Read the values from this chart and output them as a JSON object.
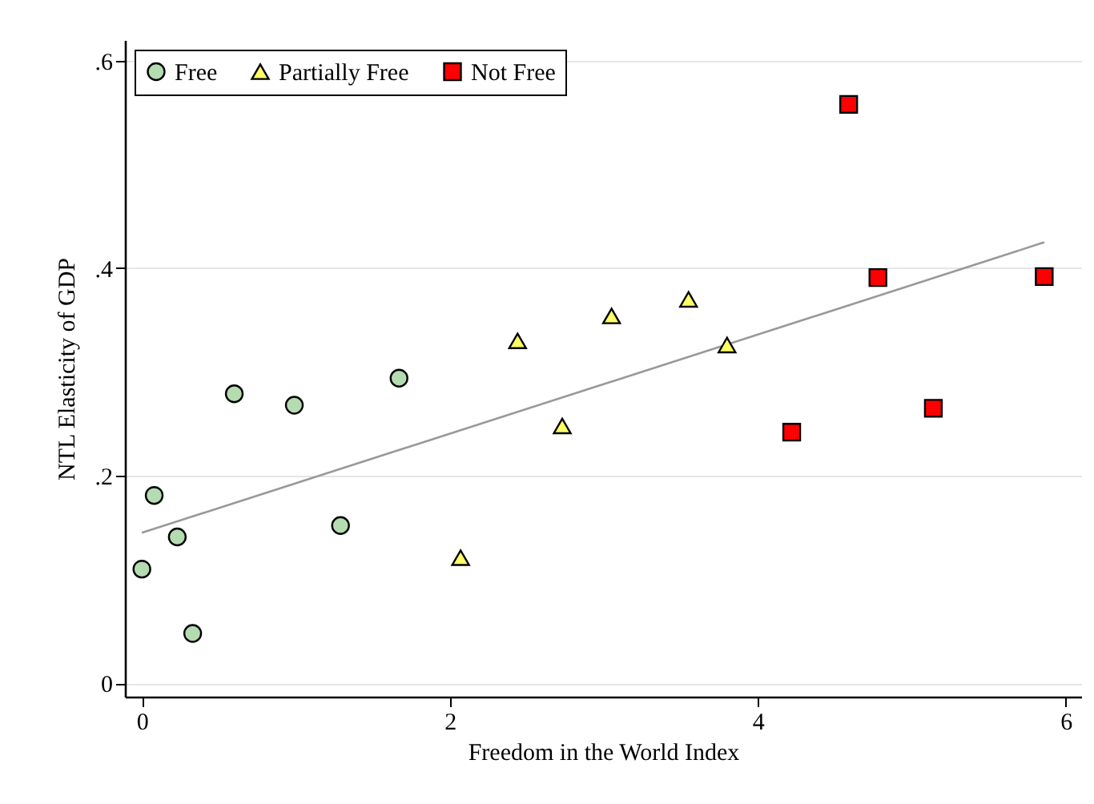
{
  "chart_data": {
    "type": "scatter",
    "xlabel": "Freedom in the World Index",
    "ylabel": "NTL Elasticity of GDP",
    "xlim": [
      -0.11,
      6.1
    ],
    "ylim": [
      -0.013,
      0.62
    ],
    "xticks": [
      0,
      2,
      4,
      6
    ],
    "yticks": [
      {
        "value": 0,
        "label": "0"
      },
      {
        "value": 0.2,
        "label": ".2"
      },
      {
        "value": 0.4,
        "label": ".4"
      },
      {
        "value": 0.6,
        "label": ".6"
      }
    ],
    "grid": "y",
    "legend": "top left",
    "series": [
      {
        "name": "Free",
        "color": "#b5dbb0",
        "marker": "circle",
        "x": [
          0,
          0.08,
          0.23,
          0.33,
          0.6,
          0.99,
          1.29,
          1.67
        ],
        "values": [
          0.11,
          0.181,
          0.141,
          0.048,
          0.279,
          0.268,
          0.152,
          0.294
        ]
      },
      {
        "name": "Partially Free",
        "color": "#ffff66",
        "marker": "triangle",
        "x": [
          2.07,
          2.44,
          2.73,
          3.05,
          3.55,
          3.8
        ],
        "values": [
          0.121,
          0.33,
          0.248,
          0.354,
          0.37,
          0.326
        ]
      },
      {
        "name": "Not Free",
        "color": "#ff0000",
        "marker": "square",
        "x": [
          4.22,
          4.59,
          4.78,
          5.14,
          5.86
        ],
        "values": [
          0.242,
          0.558,
          0.391,
          0.265,
          0.392
        ]
      },
      {
        "type": "line",
        "color": "#999999",
        "x": [
          0,
          5.86
        ],
        "values": [
          0.145,
          0.425
        ]
      }
    ]
  }
}
